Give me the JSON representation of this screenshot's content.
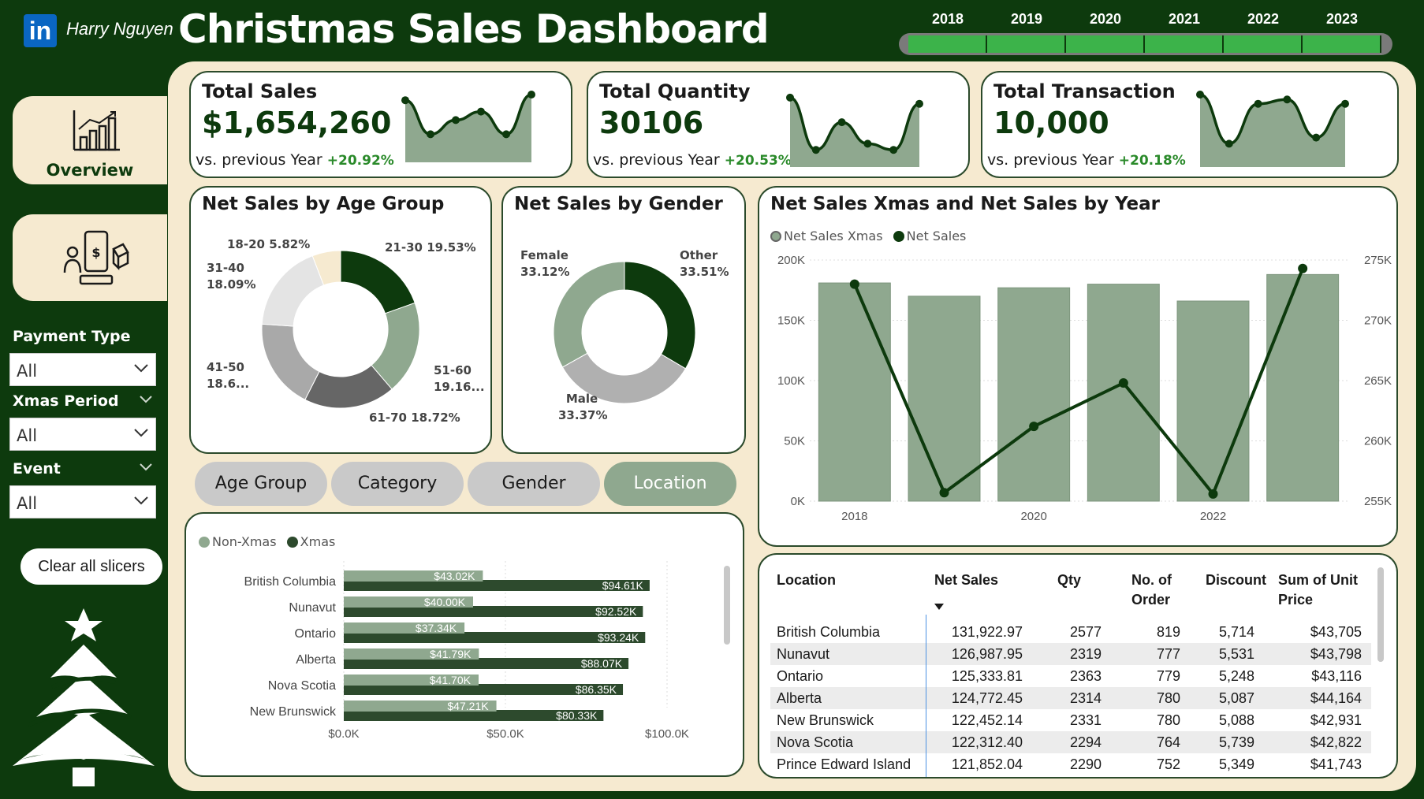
{
  "header": {
    "logo_text": "in",
    "author": "Harry Nguyen",
    "title": "Christmas Sales Dashboard",
    "years": [
      "2018",
      "2019",
      "2020",
      "2021",
      "2022",
      "2023"
    ]
  },
  "nav": {
    "overview_label": "Overview"
  },
  "slicers": [
    {
      "title": "Payment Type",
      "value": "All"
    },
    {
      "title": "Xmas Period",
      "value": "All"
    },
    {
      "title": "Event",
      "value": "All"
    }
  ],
  "clear_button": "Clear all slicers",
  "kpis": [
    {
      "title": "Total Sales",
      "value": "$1,654,260",
      "vs": "vs. previous Year",
      "change": "+20.92%",
      "spark": [
        0.9,
        0.3,
        0.55,
        0.7,
        0.3,
        1.0
      ]
    },
    {
      "title": "Total Quantity",
      "value": "30106",
      "vs": "vs. previous Year",
      "change": "+20.53%",
      "spark": [
        0.95,
        0.1,
        0.55,
        0.2,
        0.1,
        0.85
      ]
    },
    {
      "title": "Total Transaction",
      "value": "10,000",
      "vs": "vs. previous Year",
      "change": "+20.18%",
      "spark": [
        1.0,
        0.2,
        0.85,
        0.92,
        0.3,
        0.85
      ]
    }
  ],
  "age_chart": {
    "title": "Net Sales by Age Group",
    "labels": [
      {
        "name": "21-30",
        "text": "21-30 19.53%"
      },
      {
        "name": "51-60",
        "text": "51-60 19.16..."
      },
      {
        "name": "61-70",
        "text": "61-70 18.72%"
      },
      {
        "name": "41-50",
        "text": "41-50 18.6..."
      },
      {
        "name": "31-40",
        "text": "31-40 18.09%"
      },
      {
        "name": "18-20",
        "text": "18-20 5.82%"
      }
    ]
  },
  "gender_chart": {
    "title": "Net Sales by Gender",
    "labels": {
      "other": "Other 33.51%",
      "male": "Male 33.37%",
      "female": "Female 33.12%"
    }
  },
  "pills": [
    "Age Group",
    "Category",
    "Gender",
    "Location"
  ],
  "location_legend": [
    "Non-Xmas",
    "Xmas"
  ],
  "year_legend": [
    "Net Sales Xmas",
    "Net Sales"
  ],
  "year_chart_title": "Net Sales Xmas and Net Sales by Year",
  "table": {
    "headers": [
      "Location",
      "Net Sales",
      "Qty",
      "No. of Order",
      "Discount",
      "Sum of Unit Price"
    ],
    "rows": [
      [
        "British Columbia",
        "131,922.97",
        "2577",
        "819",
        "5,714",
        "$43,705"
      ],
      [
        "Nunavut",
        "126,987.95",
        "2319",
        "777",
        "5,531",
        "$43,798"
      ],
      [
        "Ontario",
        "125,333.81",
        "2363",
        "779",
        "5,248",
        "$43,116"
      ],
      [
        "Alberta",
        "124,772.45",
        "2314",
        "780",
        "5,087",
        "$44,164"
      ],
      [
        "New Brunswick",
        "122,452.14",
        "2331",
        "780",
        "5,088",
        "$42,931"
      ],
      [
        "Nova Scotia",
        "122,312.40",
        "2294",
        "764",
        "5,739",
        "$42,822"
      ],
      [
        "Prince Edward Island",
        "121,852.04",
        "2290",
        "752",
        "5,349",
        "$41,743"
      ]
    ]
  },
  "colors": {
    "dark_green": "#0d3a0d",
    "sage": "#8fa88f",
    "cream": "#f6ead0",
    "bright_green": "#3cb34a"
  },
  "chart_data": [
    {
      "type": "pie",
      "title": "Net Sales by Age Group",
      "categories": [
        "21-30",
        "51-60",
        "61-70",
        "41-50",
        "31-40",
        "18-20"
      ],
      "values": [
        19.53,
        19.16,
        18.72,
        18.6,
        18.09,
        5.82
      ],
      "colors": [
        "#0d3a0d",
        "#8fa88f",
        "#666666",
        "#a9a9a9",
        "#e4e4e4",
        "#f6ead0"
      ]
    },
    {
      "type": "pie",
      "title": "Net Sales by Gender",
      "categories": [
        "Other",
        "Male",
        "Female"
      ],
      "values": [
        33.51,
        33.37,
        33.12
      ],
      "colors": [
        "#0d3a0d",
        "#b0b0b0",
        "#8fa88f"
      ]
    },
    {
      "type": "bar",
      "title": "Net Sales Xmas and Net Sales by Year",
      "categories": [
        "2018",
        "2019",
        "2020",
        "2021",
        "2022",
        "2023"
      ],
      "x_tick_labels": [
        "2018",
        "",
        "2020",
        "",
        "2022",
        ""
      ],
      "series": [
        {
          "name": "Net Sales Xmas",
          "type": "bar",
          "axis": "left",
          "values": [
            181000,
            170000,
            177000,
            180000,
            166000,
            188000
          ]
        },
        {
          "name": "Net Sales",
          "type": "line",
          "axis": "right",
          "values": [
            273000,
            255700,
            261200,
            264800,
            255600,
            274300
          ]
        }
      ],
      "ylim_left": [
        0,
        200000
      ],
      "ylim_right": [
        255000,
        275000
      ],
      "left_ticks": [
        "0K",
        "50K",
        "100K",
        "150K",
        "200K"
      ],
      "right_ticks": [
        "255K",
        "260K",
        "265K",
        "270K",
        "275K"
      ],
      "legend": "top-left"
    },
    {
      "type": "bar",
      "orientation": "horizontal",
      "categories": [
        "British Columbia",
        "Nunavut",
        "Ontario",
        "Alberta",
        "Nova Scotia",
        "New Brunswick"
      ],
      "series": [
        {
          "name": "Non-Xmas",
          "values": [
            43.02,
            40.0,
            37.34,
            41.79,
            41.7,
            47.21
          ],
          "labels": [
            "$43.02K",
            "$40.00K",
            "$37.34K",
            "$41.79K",
            "$41.70K",
            "$47.21K"
          ]
        },
        {
          "name": "Xmas",
          "values": [
            94.61,
            92.52,
            93.24,
            88.07,
            86.35,
            80.33
          ],
          "labels": [
            "$94.61K",
            "$92.52K",
            "$93.24K",
            "$88.07K",
            "$86.35K",
            "$80.33K"
          ]
        }
      ],
      "xlim": [
        0,
        100
      ],
      "x_tick_labels": [
        "$0.0K",
        "$50.0K",
        "$100.0K"
      ],
      "legend": "top-left"
    }
  ]
}
